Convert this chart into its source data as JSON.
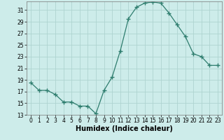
{
  "x": [
    0,
    1,
    2,
    3,
    4,
    5,
    6,
    7,
    8,
    9,
    10,
    11,
    12,
    13,
    14,
    15,
    16,
    17,
    18,
    19,
    20,
    21,
    22,
    23
  ],
  "y": [
    18.5,
    17.2,
    17.2,
    16.5,
    15.2,
    15.2,
    14.5,
    14.5,
    13.2,
    17.2,
    19.5,
    24.0,
    29.5,
    31.5,
    32.2,
    32.4,
    32.2,
    30.5,
    28.5,
    26.5,
    23.5,
    23.0,
    21.5,
    21.5
  ],
  "xlabel": "Humidex (Indice chaleur)",
  "bg_color": "#cdecea",
  "line_color": "#2e7d6e",
  "grid_color": "#aed4d0",
  "xlim": [
    -0.5,
    23.5
  ],
  "ylim": [
    13,
    32.5
  ],
  "yticks": [
    13,
    15,
    17,
    19,
    21,
    23,
    25,
    27,
    29,
    31
  ],
  "xticks": [
    0,
    1,
    2,
    3,
    4,
    5,
    6,
    7,
    8,
    9,
    10,
    11,
    12,
    13,
    14,
    15,
    16,
    17,
    18,
    19,
    20,
    21,
    22,
    23
  ]
}
